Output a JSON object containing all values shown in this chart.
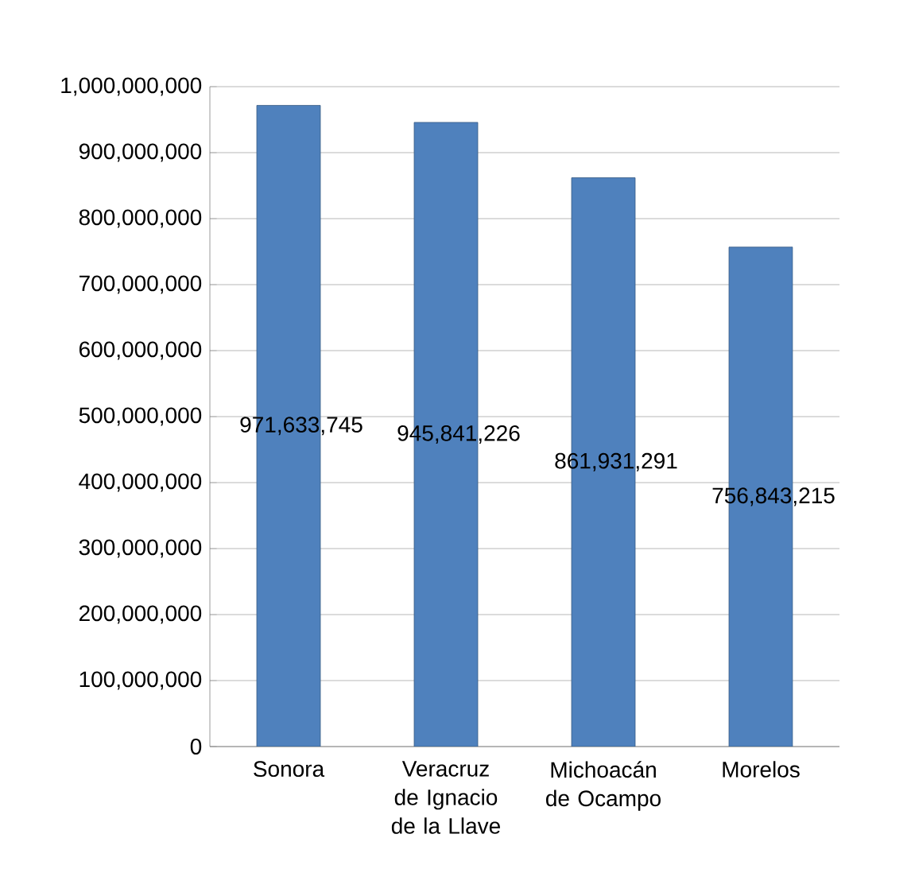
{
  "chart_data": {
    "type": "bar",
    "categories": [
      "Sonora",
      "Veracruz de Ignacio de la Llave",
      "Michoacán de Ocampo",
      "Morelos"
    ],
    "values": [
      971633745,
      945841226,
      861931291,
      756843215
    ],
    "value_labels": [
      "971,633,745",
      "945,841,226",
      "861,931,291",
      "756,843,215"
    ],
    "color": "#4f81bd",
    "ylim": [
      0,
      1000000000
    ],
    "yticks": [
      {
        "value": 0,
        "label": "0"
      },
      {
        "value": 100000000,
        "label": "100,000,000"
      },
      {
        "value": 200000000,
        "label": "200,000,000"
      },
      {
        "value": 300000000,
        "label": "300,000,000"
      },
      {
        "value": 400000000,
        "label": "400,000,000"
      },
      {
        "value": 500000000,
        "label": "500,000,000"
      },
      {
        "value": 600000000,
        "label": "600,000,000"
      },
      {
        "value": 700000000,
        "label": "700,000,000"
      },
      {
        "value": 800000000,
        "label": "800,000,000"
      },
      {
        "value": 900000000,
        "label": "900,000,000"
      },
      {
        "value": 1000000000,
        "label": "1,000,000,000"
      }
    ],
    "grid": "y"
  }
}
